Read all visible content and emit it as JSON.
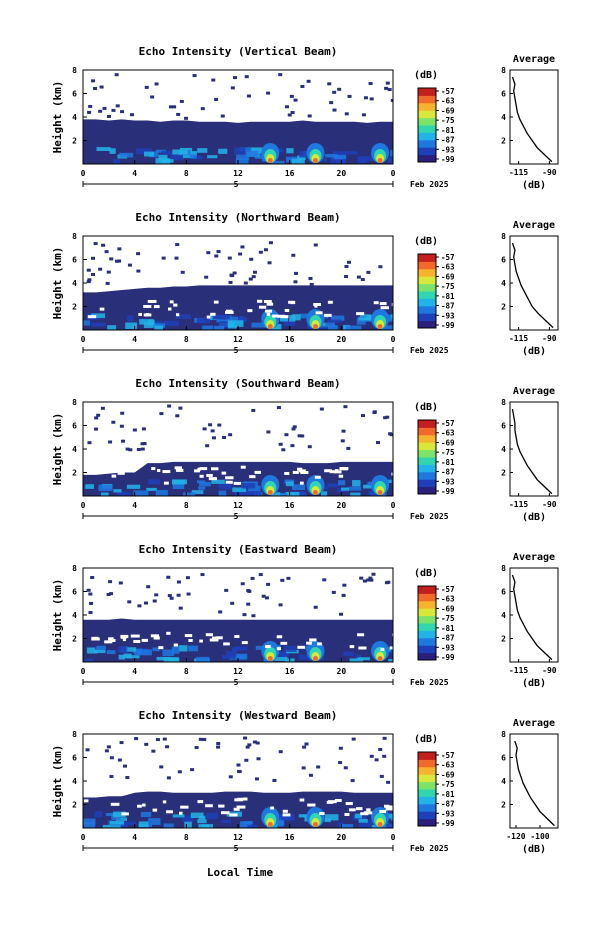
{
  "figure": {
    "xlabel": "Local Time"
  },
  "colorbar": {
    "unit_label": "(dB)",
    "ticks": [
      "-57",
      "-63",
      "-69",
      "-75",
      "-81",
      "-87",
      "-93",
      "-99"
    ],
    "colors": [
      "#2a1f7a",
      "#1f3fb8",
      "#1f78e0",
      "#22b4e8",
      "#2fd6b0",
      "#7be36a",
      "#d8e83a",
      "#f6b42e",
      "#f26a2a",
      "#c41f1f"
    ]
  },
  "chart_data": [
    {
      "type": "heatmap",
      "title": "Echo Intensity (Vertical Beam)",
      "ylabel": "Height (km)",
      "x_ticks": [
        "0",
        "4",
        "8",
        "12",
        "16",
        "20",
        "0"
      ],
      "y_ticks": [
        "2",
        "4",
        "6",
        "8"
      ],
      "date_marker": "5",
      "date_label": "Feb 2025",
      "xlim": [
        0,
        24
      ],
      "ylim": [
        0,
        8
      ],
      "layer_top_km": [
        3.8,
        3.8,
        3.7,
        3.8,
        3.7,
        3.7,
        3.6,
        3.7,
        3.7,
        3.6,
        3.6,
        3.6,
        3.5,
        3.6,
        3.6,
        3.6,
        3.6,
        3.7,
        3.6,
        3.6,
        3.6,
        3.6,
        3.5,
        3.6,
        3.6
      ],
      "hotspots_hour": [
        14.5,
        18.0,
        23.0
      ],
      "average": {
        "title": "Average",
        "xlabel": "(dB)",
        "x_ticks": [
          "-115",
          "-90"
        ],
        "xlim": [
          -122,
          -83
        ],
        "y_ticks": [
          "2",
          "4",
          "6",
          "8"
        ],
        "profile": [
          [
            0.2,
            -88
          ],
          [
            0.8,
            -94
          ],
          [
            1.4,
            -100
          ],
          [
            2.0,
            -104
          ],
          [
            2.6,
            -108
          ],
          [
            3.2,
            -111
          ],
          [
            3.8,
            -114
          ],
          [
            4.4,
            -116
          ],
          [
            5.0,
            -117
          ],
          [
            5.6,
            -118
          ],
          [
            6.2,
            -119
          ],
          [
            6.8,
            -118
          ],
          [
            7.4,
            -120
          ]
        ]
      }
    },
    {
      "type": "heatmap",
      "title": "Echo Intensity (Northward Beam)",
      "ylabel": "Height (km)",
      "x_ticks": [
        "0",
        "4",
        "8",
        "12",
        "16",
        "20",
        "0"
      ],
      "y_ticks": [
        "2",
        "4",
        "6",
        "8"
      ],
      "date_marker": "5",
      "date_label": "Feb 2025",
      "xlim": [
        0,
        24
      ],
      "ylim": [
        0,
        8
      ],
      "layer_top_km": [
        3.2,
        3.2,
        3.3,
        3.4,
        3.5,
        3.6,
        3.6,
        3.7,
        3.7,
        3.8,
        3.8,
        3.8,
        3.8,
        3.8,
        3.8,
        3.8,
        3.8,
        3.8,
        3.8,
        3.8,
        3.8,
        3.8,
        3.8,
        3.8,
        3.8
      ],
      "hotspots_hour": [
        14.5,
        18.0,
        23.0
      ],
      "average": {
        "title": "Average",
        "xlabel": "(dB)",
        "x_ticks": [
          "-115",
          "-90"
        ],
        "xlim": [
          -122,
          -83
        ],
        "y_ticks": [
          "2",
          "4",
          "6",
          "8"
        ],
        "profile": [
          [
            0.2,
            -87
          ],
          [
            0.8,
            -93
          ],
          [
            1.4,
            -99
          ],
          [
            2.0,
            -104
          ],
          [
            2.6,
            -107
          ],
          [
            3.2,
            -110
          ],
          [
            3.8,
            -113
          ],
          [
            4.4,
            -115
          ],
          [
            5.0,
            -117
          ],
          [
            5.6,
            -118
          ],
          [
            6.2,
            -119
          ],
          [
            6.8,
            -118
          ],
          [
            7.4,
            -120
          ]
        ]
      }
    },
    {
      "type": "heatmap",
      "title": "Echo Intensity (Southward Beam)",
      "ylabel": "Height (km)",
      "x_ticks": [
        "0",
        "4",
        "8",
        "12",
        "16",
        "20",
        "0"
      ],
      "y_ticks": [
        "2",
        "4",
        "6",
        "8"
      ],
      "date_marker": "5",
      "date_label": "Feb 2025",
      "xlim": [
        0,
        24
      ],
      "ylim": [
        0,
        8
      ],
      "layer_top_km": [
        1.8,
        1.8,
        1.9,
        2.0,
        2.0,
        2.8,
        2.8,
        2.9,
        2.9,
        2.9,
        2.9,
        2.9,
        2.9,
        2.9,
        2.9,
        2.9,
        2.9,
        2.8,
        2.8,
        2.8,
        2.9,
        2.9,
        2.9,
        2.9,
        2.9
      ],
      "hotspots_hour": [
        14.5,
        18.0,
        23.0
      ],
      "average": {
        "title": "Average",
        "xlabel": "(dB)",
        "x_ticks": [
          "-115",
          "-90"
        ],
        "xlim": [
          -122,
          -83
        ],
        "y_ticks": [
          "2",
          "4",
          "6",
          "8"
        ],
        "profile": [
          [
            0.2,
            -88
          ],
          [
            0.8,
            -94
          ],
          [
            1.4,
            -100
          ],
          [
            2.0,
            -104
          ],
          [
            2.6,
            -108
          ],
          [
            3.2,
            -111
          ],
          [
            3.8,
            -114
          ],
          [
            4.4,
            -116
          ],
          [
            5.0,
            -117
          ],
          [
            5.6,
            -118
          ],
          [
            6.2,
            -118
          ],
          [
            6.8,
            -119
          ],
          [
            7.4,
            -120
          ]
        ]
      }
    },
    {
      "type": "heatmap",
      "title": "Echo Intensity (Eastward Beam)",
      "ylabel": "Height (km)",
      "x_ticks": [
        "0",
        "4",
        "8",
        "12",
        "16",
        "20",
        "0"
      ],
      "y_ticks": [
        "2",
        "4",
        "6",
        "8"
      ],
      "date_marker": "5",
      "date_label": "Feb 2025",
      "xlim": [
        0,
        24
      ],
      "ylim": [
        0,
        8
      ],
      "layer_top_km": [
        3.6,
        3.6,
        3.6,
        3.7,
        3.6,
        3.6,
        3.6,
        3.6,
        3.6,
        3.6,
        3.6,
        3.6,
        3.6,
        3.6,
        3.6,
        3.6,
        3.6,
        3.6,
        3.6,
        3.6,
        3.6,
        3.6,
        3.6,
        3.6,
        3.6
      ],
      "hotspots_hour": [
        14.5,
        18.0,
        23.0
      ],
      "average": {
        "title": "Average",
        "xlabel": "(dB)",
        "x_ticks": [
          "-115",
          "-90"
        ],
        "xlim": [
          -122,
          -83
        ],
        "y_ticks": [
          "2",
          "4",
          "6",
          "8"
        ],
        "profile": [
          [
            0.2,
            -88
          ],
          [
            0.8,
            -94
          ],
          [
            1.4,
            -100
          ],
          [
            2.0,
            -104
          ],
          [
            2.6,
            -108
          ],
          [
            3.2,
            -111
          ],
          [
            3.8,
            -114
          ],
          [
            4.4,
            -116
          ],
          [
            5.0,
            -117
          ],
          [
            5.6,
            -118
          ],
          [
            6.2,
            -119
          ],
          [
            6.8,
            -118
          ],
          [
            7.4,
            -120
          ]
        ]
      }
    },
    {
      "type": "heatmap",
      "title": "Echo Intensity (Westward Beam)",
      "ylabel": "Height (km)",
      "x_ticks": [
        "0",
        "4",
        "8",
        "12",
        "16",
        "20",
        "0"
      ],
      "y_ticks": [
        "2",
        "4",
        "6",
        "8"
      ],
      "date_marker": "5",
      "date_label": "Feb 2025",
      "xlim": [
        0,
        24
      ],
      "ylim": [
        0,
        8
      ],
      "layer_top_km": [
        2.6,
        2.6,
        2.7,
        2.7,
        3.0,
        3.1,
        3.1,
        3.0,
        3.0,
        3.0,
        3.0,
        3.1,
        3.1,
        3.1,
        3.0,
        3.0,
        3.0,
        3.1,
        3.1,
        3.1,
        3.1,
        3.0,
        3.0,
        3.0,
        3.0
      ],
      "hotspots_hour": [
        14.5,
        18.0,
        23.0
      ],
      "average": {
        "title": "Average",
        "xlabel": "(dB)",
        "x_ticks": [
          "-120",
          "-100"
        ],
        "xlim": [
          -125,
          -85
        ],
        "y_ticks": [
          "2",
          "4",
          "6",
          "8"
        ],
        "profile": [
          [
            0.2,
            -88
          ],
          [
            0.8,
            -94
          ],
          [
            1.4,
            -100
          ],
          [
            2.0,
            -104
          ],
          [
            2.6,
            -108
          ],
          [
            3.2,
            -111
          ],
          [
            3.8,
            -114
          ],
          [
            4.4,
            -116
          ],
          [
            5.0,
            -118
          ],
          [
            5.6,
            -119
          ],
          [
            6.2,
            -120
          ],
          [
            6.8,
            -119
          ],
          [
            7.4,
            -121
          ]
        ]
      }
    }
  ]
}
